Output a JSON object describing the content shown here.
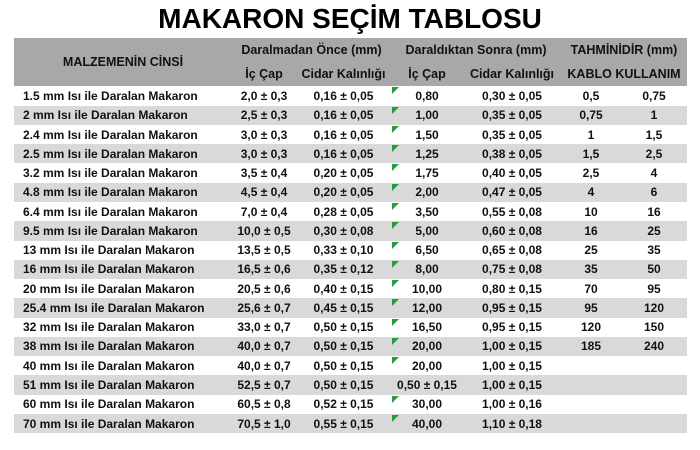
{
  "title": "MAKARON SEÇİM TABLOSU",
  "colors": {
    "header_bg": "#a8a8a8",
    "stripe_bg": "#d9d9d9",
    "text": "#111111",
    "flag_green": "#2b9a3e",
    "page_bg": "#ffffff"
  },
  "table": {
    "header": {
      "material": "MALZEMENİN CİNSİ",
      "group_before": "Daralmadan Önce (mm)",
      "group_after": "Daraldıktan Sonra (mm)",
      "group_estimate": "TAHMİNİDİR (mm)",
      "sub_ic_cap_before": "İç Çap",
      "sub_cidar_before": "Cidar Kalınlığı",
      "sub_ic_cap_after": "İç Çap",
      "sub_cidar_after": "Cidar Kalınlığı",
      "sub_kablo": "KABLO KULLANIM"
    },
    "rows": [
      {
        "material": "1.5 mm Isı ile Daralan Makaron",
        "ic_cap_once": "2,0 ± 0,3",
        "cidar_once": "0,16 ± 0,05",
        "ic_cap_sonra": "0,80",
        "cidar_sonra": "0,30 ± 0,05",
        "kablo_min": "0,5",
        "kablo_max": "0,75",
        "flag": true
      },
      {
        "material": "2 mm Isı ile Daralan Makaron",
        "ic_cap_once": "2,5 ± 0,3",
        "cidar_once": "0,16 ± 0,05",
        "ic_cap_sonra": "1,00",
        "cidar_sonra": "0,35 ± 0,05",
        "kablo_min": "0,75",
        "kablo_max": "1",
        "flag": true
      },
      {
        "material": "2.4 mm Isı ile Daralan Makaron",
        "ic_cap_once": "3,0 ± 0,3",
        "cidar_once": "0,16 ± 0,05",
        "ic_cap_sonra": "1,50",
        "cidar_sonra": "0,35 ± 0,05",
        "kablo_min": "1",
        "kablo_max": "1,5",
        "flag": true
      },
      {
        "material": "2.5 mm Isı ile Daralan Makaron",
        "ic_cap_once": "3,0 ± 0,3",
        "cidar_once": "0,16 ± 0,05",
        "ic_cap_sonra": "1,25",
        "cidar_sonra": "0,38 ± 0,05",
        "kablo_min": "1,5",
        "kablo_max": "2,5",
        "flag": true
      },
      {
        "material": "3.2 mm Isı ile Daralan Makaron",
        "ic_cap_once": "3,5 ± 0,4",
        "cidar_once": "0,20 ± 0,05",
        "ic_cap_sonra": "1,75",
        "cidar_sonra": "0,40 ± 0,05",
        "kablo_min": "2,5",
        "kablo_max": "4",
        "flag": true
      },
      {
        "material": "4.8 mm Isı ile Daralan Makaron",
        "ic_cap_once": "4,5 ± 0,4",
        "cidar_once": "0,20 ± 0,05",
        "ic_cap_sonra": "2,00",
        "cidar_sonra": "0,47 ± 0,05",
        "kablo_min": "4",
        "kablo_max": "6",
        "flag": true
      },
      {
        "material": "6.4 mm Isı ile Daralan Makaron",
        "ic_cap_once": "7,0 ± 0,4",
        "cidar_once": "0,28 ± 0,05",
        "ic_cap_sonra": "3,50",
        "cidar_sonra": "0,55 ± 0,08",
        "kablo_min": "10",
        "kablo_max": "16",
        "flag": true
      },
      {
        "material": "9.5 mm Isı ile Daralan Makaron",
        "ic_cap_once": "10,0 ± 0,5",
        "cidar_once": "0,30 ± 0,08",
        "ic_cap_sonra": "5,00",
        "cidar_sonra": "0,60 ± 0,08",
        "kablo_min": "16",
        "kablo_max": "25",
        "flag": true
      },
      {
        "material": "13 mm Isı ile Daralan Makaron",
        "ic_cap_once": "13,5 ± 0,5",
        "cidar_once": "0,33 ± 0,10",
        "ic_cap_sonra": "6,50",
        "cidar_sonra": "0,65 ± 0,08",
        "kablo_min": "25",
        "kablo_max": "35",
        "flag": true
      },
      {
        "material": "16 mm Isı ile Daralan Makaron",
        "ic_cap_once": "16,5 ± 0,6",
        "cidar_once": "0,35 ± 0,12",
        "ic_cap_sonra": "8,00",
        "cidar_sonra": "0,75 ± 0,08",
        "kablo_min": "35",
        "kablo_max": "50",
        "flag": true
      },
      {
        "material": "20 mm Isı ile Daralan Makaron",
        "ic_cap_once": "20,5 ± 0,6",
        "cidar_once": "0,40 ± 0,15",
        "ic_cap_sonra": "10,00",
        "cidar_sonra": "0,80 ± 0,15",
        "kablo_min": "70",
        "kablo_max": "95",
        "flag": true
      },
      {
        "material": "25.4 mm Isı ile Daralan Makaron",
        "ic_cap_once": "25,6 ± 0,7",
        "cidar_once": "0,45 ± 0,15",
        "ic_cap_sonra": "12,00",
        "cidar_sonra": "0,95 ± 0,15",
        "kablo_min": "95",
        "kablo_max": "120",
        "flag": true
      },
      {
        "material": "32 mm Isı ile Daralan Makaron",
        "ic_cap_once": "33,0 ± 0,7",
        "cidar_once": "0,50 ± 0,15",
        "ic_cap_sonra": "16,50",
        "cidar_sonra": "0,95 ± 0,15",
        "kablo_min": "120",
        "kablo_max": "150",
        "flag": true
      },
      {
        "material": "38 mm Isı ile Daralan Makaron",
        "ic_cap_once": "40,0 ± 0,7",
        "cidar_once": "0,50 ± 0,15",
        "ic_cap_sonra": "20,00",
        "cidar_sonra": "1,00 ± 0,15",
        "kablo_min": "185",
        "kablo_max": "240",
        "flag": true
      },
      {
        "material": "40 mm Isı ile Daralan Makaron",
        "ic_cap_once": "40,0 ± 0,7",
        "cidar_once": "0,50 ± 0,15",
        "ic_cap_sonra": "20,00",
        "cidar_sonra": "1,00 ± 0,15",
        "kablo_min": "",
        "kablo_max": "",
        "flag": true
      },
      {
        "material": "51 mm Isı ile Daralan Makaron",
        "ic_cap_once": "52,5 ± 0,7",
        "cidar_once": "0,50 ± 0,15",
        "ic_cap_sonra": "0,50 ± 0,15",
        "cidar_sonra": "1,00 ± 0,15",
        "kablo_min": "",
        "kablo_max": "",
        "flag": false
      },
      {
        "material": "60 mm Isı ile Daralan Makaron",
        "ic_cap_once": "60,5 ± 0,8",
        "cidar_once": "0,52 ± 0,15",
        "ic_cap_sonra": "30,00",
        "cidar_sonra": "1,00 ± 0,16",
        "kablo_min": "",
        "kablo_max": "",
        "flag": true
      },
      {
        "material": "70 mm Isı ile Daralan Makaron",
        "ic_cap_once": "70,5 ± 1,0",
        "cidar_once": "0,55 ± 0,15",
        "ic_cap_sonra": "40,00",
        "cidar_sonra": "1,10 ± 0,18",
        "kablo_min": "",
        "kablo_max": "",
        "flag": true
      }
    ]
  }
}
